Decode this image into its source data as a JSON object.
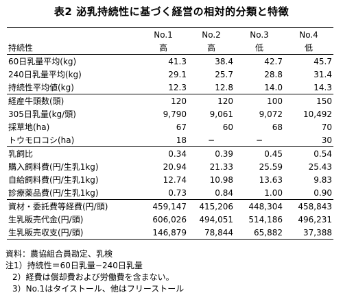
{
  "title": "表2  泌乳持続性に基づく経営の相対的分類と特徴",
  "columns": [
    "No.1",
    "No.2",
    "No.3",
    "No.4"
  ],
  "rows": [
    {
      "label": "持続性",
      "values": [
        "高",
        "高",
        "低",
        "低"
      ]
    },
    {
      "label": "60日乳量平均(kg)",
      "values": [
        "41.3",
        "38.4",
        "42.7",
        "45.7"
      ]
    },
    {
      "label": "240日乳量平均(kg)",
      "values": [
        "29.1",
        "25.7",
        "28.8",
        "31.4"
      ]
    },
    {
      "label": "持続性平均値(kg)",
      "values": [
        "12.3",
        "12.8",
        "14.0",
        "14.3"
      ]
    },
    {
      "label": "経産牛頭数(頭)",
      "values": [
        "120",
        "120",
        "100",
        "150"
      ]
    },
    {
      "label": "305日乳量(kg/頭)",
      "values": [
        "9,790",
        "9,061",
        "9,072",
        "10,492"
      ]
    },
    {
      "label": "採草地(ha)",
      "values": [
        "67",
        "60",
        "68",
        "70"
      ]
    },
    {
      "label": "トウモロコシ(ha)",
      "values": [
        "18",
        "−",
        "−",
        "30"
      ]
    },
    {
      "label": "乳飼比",
      "values": [
        "0.34",
        "0.39",
        "0.45",
        "0.54"
      ]
    },
    {
      "label": "購入飼料費(円/生乳1kg)",
      "values": [
        "20.94",
        "21.33",
        "25.59",
        "25.43"
      ]
    },
    {
      "label": "自給飼料費(円/生乳1kg)",
      "values": [
        "12.74",
        "10.98",
        "13.63",
        "9.83"
      ]
    },
    {
      "label": "診療薬品費(円/生乳1kg)",
      "values": [
        "0.73",
        "0.84",
        "1.00",
        "0.90"
      ]
    },
    {
      "label": "資材・委託費等経費(円/頭)",
      "values": [
        "459,147",
        "415,206",
        "448,304",
        "458,843"
      ]
    },
    {
      "label": "生乳販売代金(円/頭)",
      "values": [
        "606,026",
        "494,051",
        "514,186",
        "496,231"
      ]
    },
    {
      "label": "生乳販売収支(円/頭)",
      "values": [
        "146,879",
        "78,844",
        "65,882",
        "37,388"
      ]
    }
  ],
  "notes": [
    "資料：農協組合員勘定、乳検",
    "注1）持続性＝60日乳量−240日乳量",
    "2）経費は償却費および労働費を含まない。",
    "3）No.1はタイストール、他はフリーストール"
  ]
}
